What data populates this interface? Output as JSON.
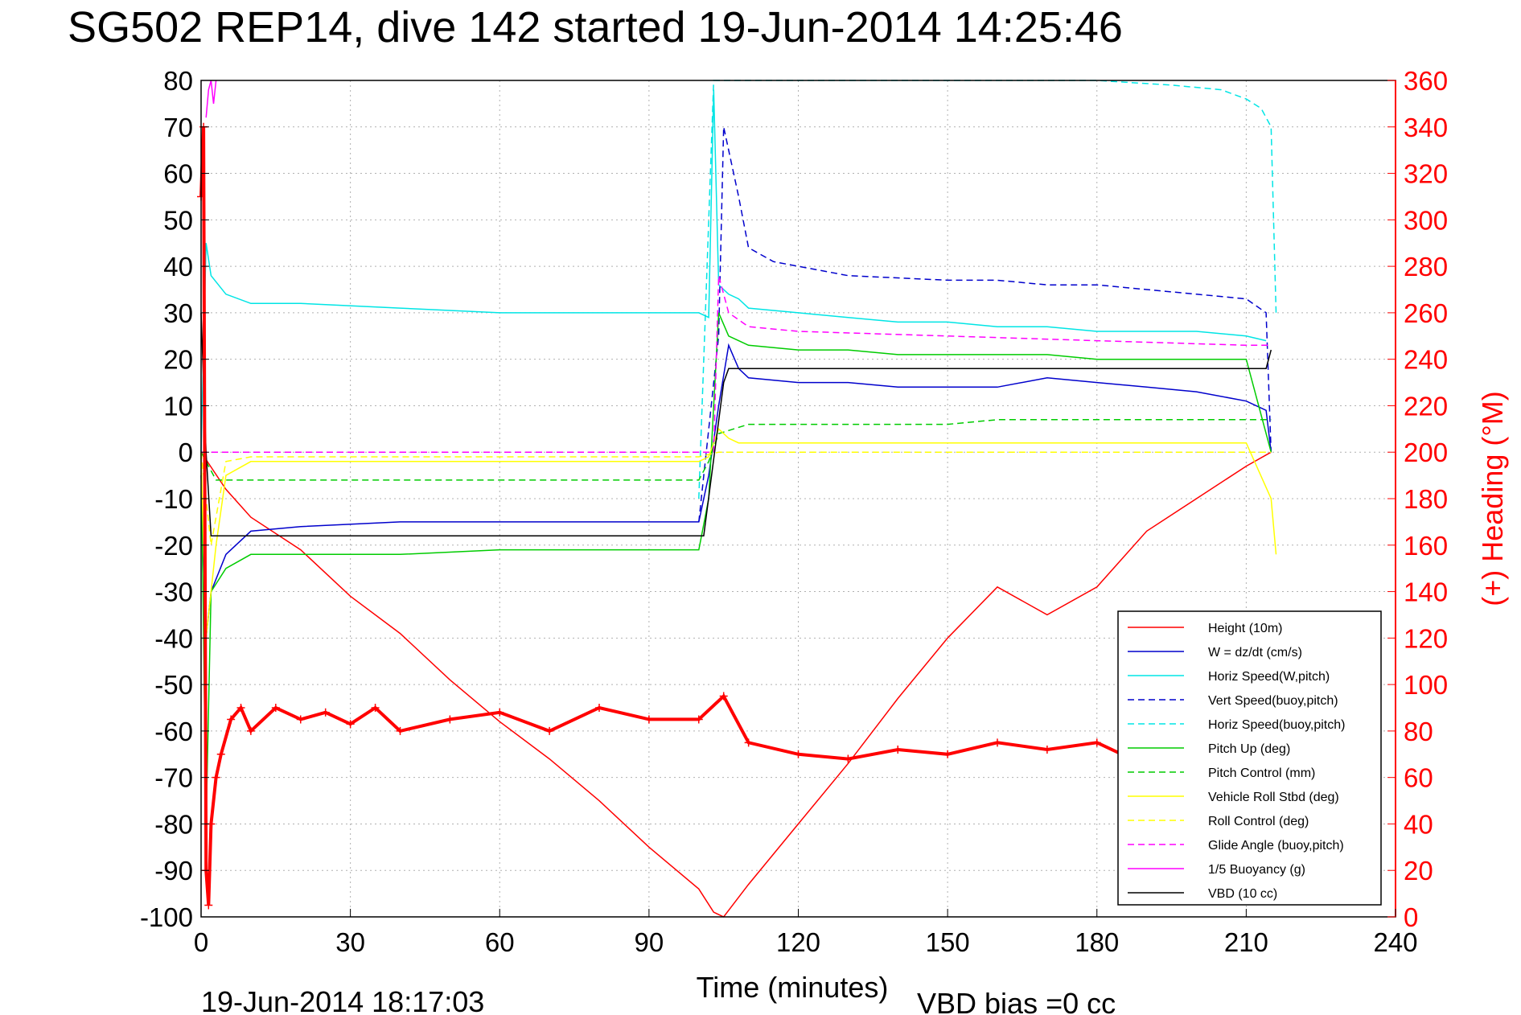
{
  "colors": {
    "height": "#ff0000",
    "w": "#0000cc",
    "horiz_speed": "#00e5e5",
    "vert_speed_buoy": "#0000cc",
    "horiz_speed_buoy": "#00e5e5",
    "pitch_up": "#00cc00",
    "pitch_control": "#00cc00",
    "roll_stbd": "#ffff00",
    "roll_control": "#ffff00",
    "glide_angle": "#ff00ff",
    "buoyancy": "#ff00ff",
    "vbd": "#000000",
    "heading": "#ff0000",
    "grid": "#b0b0b0"
  },
  "chart_data": {
    "type": "line",
    "title": "SG502 REP14, dive 142 started 19-Jun-2014 14:25:46",
    "xlabel": "Time (minutes)",
    "ylabel_right": "(+) Heading (°M)",
    "xlim": [
      0,
      240
    ],
    "ylim": [
      -100,
      80
    ],
    "ylim_right": [
      0,
      360
    ],
    "xticks": [
      "0",
      "30",
      "60",
      "90",
      "120",
      "150",
      "180",
      "210",
      "240"
    ],
    "yticks": [
      "80",
      "70",
      "60",
      "50",
      "40",
      "30",
      "20",
      "10",
      "0",
      "-10",
      "-20",
      "-30",
      "-40",
      "-50",
      "-60",
      "-70",
      "-80",
      "-90",
      "-100"
    ],
    "yticks_right": [
      "360",
      "340",
      "320",
      "300",
      "280",
      "260",
      "240",
      "220",
      "200",
      "180",
      "160",
      "140",
      "120",
      "100",
      "80",
      "60",
      "40",
      "20",
      "0"
    ],
    "grid": true,
    "legend_position": "bottom-right",
    "footer_left": "19-Jun-2014 18:17:03",
    "footer_right": "VBD bias =0 cc",
    "series": [
      {
        "name": "Height (10m)",
        "style": "solid",
        "color": "#ff0000",
        "x": [
          0,
          5,
          10,
          20,
          30,
          40,
          50,
          60,
          70,
          80,
          90,
          100,
          103,
          105,
          110,
          120,
          130,
          140,
          150,
          160,
          170,
          180,
          190,
          200,
          210,
          215
        ],
        "y": [
          0,
          -8,
          -14,
          -21,
          -31,
          -39,
          -49,
          -58,
          -66,
          -75,
          -85,
          -94,
          -99,
          -100,
          -93,
          -80,
          -67,
          -53,
          -40,
          -29,
          -35,
          -29,
          -17,
          -10,
          -3,
          0
        ]
      },
      {
        "name": "W  = dz/dt (cm/s)",
        "style": "solid",
        "color": "#0000cc",
        "x": [
          0,
          1,
          2,
          5,
          10,
          20,
          40,
          60,
          80,
          100,
          102,
          104,
          106,
          108,
          110,
          120,
          130,
          140,
          150,
          160,
          170,
          180,
          190,
          200,
          210,
          214,
          215
        ],
        "y": [
          -5,
          -40,
          -30,
          -22,
          -17,
          -16,
          -15,
          -15,
          -15,
          -15,
          -5,
          10,
          23,
          18,
          16,
          15,
          15,
          14,
          14,
          14,
          16,
          15,
          14,
          13,
          11,
          9,
          0
        ]
      },
      {
        "name": "Horiz Speed(W,pitch)",
        "style": "solid",
        "color": "#00e5e5",
        "x": [
          0,
          1,
          2,
          5,
          10,
          20,
          40,
          60,
          80,
          100,
          102,
          103,
          104,
          106,
          108,
          110,
          120,
          130,
          140,
          150,
          160,
          170,
          180,
          190,
          200,
          210,
          214
        ],
        "y": [
          0,
          45,
          38,
          34,
          32,
          32,
          31,
          30,
          30,
          30,
          29,
          78,
          36,
          34,
          33,
          31,
          30,
          29,
          28,
          28,
          27,
          27,
          26,
          26,
          26,
          25,
          24
        ]
      },
      {
        "name": "Vert Speed(buoy,pitch)",
        "style": "dashed",
        "color": "#0000cc",
        "x": [
          100,
          104,
          105,
          106,
          108,
          110,
          115,
          130,
          150,
          160,
          170,
          180,
          190,
          200,
          210,
          214,
          215
        ],
        "y": [
          -15,
          25,
          70,
          65,
          55,
          44,
          41,
          38,
          37,
          37,
          36,
          36,
          35,
          34,
          33,
          30,
          0
        ]
      },
      {
        "name": "Horiz Speed(buoy,pitch)",
        "style": "dashed",
        "color": "#00e5e5",
        "x": [
          100,
          103,
          104,
          106,
          180,
          195,
          205,
          210,
          213,
          215,
          216
        ],
        "y": [
          -10,
          80,
          80,
          80,
          80,
          79,
          78,
          76,
          74,
          70,
          30
        ]
      },
      {
        "name": "Pitch Up (deg)",
        "style": "solid",
        "color": "#00cc00",
        "x": [
          0,
          1,
          2,
          5,
          10,
          20,
          40,
          60,
          80,
          100,
          102,
          104,
          106,
          108,
          110,
          120,
          130,
          140,
          150,
          160,
          170,
          180,
          190,
          200,
          210,
          215
        ],
        "y": [
          0,
          -80,
          -30,
          -25,
          -22,
          -22,
          -22,
          -21,
          -21,
          -21,
          -10,
          30,
          25,
          24,
          23,
          22,
          22,
          21,
          21,
          21,
          21,
          20,
          20,
          20,
          20,
          0
        ]
      },
      {
        "name": "Pitch Control (mm)",
        "style": "dashed",
        "color": "#00cc00",
        "x": [
          0,
          3,
          4,
          100,
          102,
          104,
          110,
          150,
          160,
          215
        ],
        "y": [
          0,
          -6,
          -6,
          -6,
          -2,
          4,
          6,
          6,
          7,
          7
        ]
      },
      {
        "name": "Vehicle Roll Stbd (deg)",
        "style": "solid",
        "color": "#ffff00",
        "x": [
          0,
          1,
          3,
          5,
          10,
          20,
          40,
          60,
          80,
          100,
          102,
          104,
          106,
          108,
          110,
          120,
          130,
          140,
          150,
          160,
          170,
          180,
          190,
          200,
          210,
          215,
          216
        ],
        "y": [
          0,
          -40,
          -20,
          -5,
          -2,
          -2,
          -2,
          -2,
          -2,
          -2,
          -1,
          5,
          3,
          2,
          2,
          2,
          2,
          2,
          2,
          2,
          2,
          2,
          2,
          2,
          2,
          -10,
          -22
        ]
      },
      {
        "name": "Roll Control (deg)",
        "style": "dashed",
        "color": "#ffff00",
        "x": [
          0,
          2,
          5,
          10,
          20,
          40,
          60,
          80,
          100,
          104,
          110,
          150,
          180,
          215
        ],
        "y": [
          0,
          -20,
          -2,
          -1,
          -1,
          -1,
          -1,
          -1,
          -1,
          0,
          0,
          0,
          0,
          0
        ]
      },
      {
        "name": "Glide Angle (buoy,pitch)",
        "style": "dashed",
        "color": "#ff00ff",
        "x": [
          0,
          100,
          103,
          104,
          106,
          110,
          120,
          150,
          180,
          210,
          215
        ],
        "y": [
          0,
          0,
          0,
          38,
          30,
          27,
          26,
          25,
          24,
          23,
          23
        ]
      },
      {
        "name": "1/5 Buoyancy (g)",
        "style": "solid",
        "color": "#ff00ff",
        "x": [
          1,
          1.5,
          2,
          2.5,
          3
        ],
        "y": [
          72,
          78,
          80,
          75,
          80
        ]
      },
      {
        "name": "VBD (10 cc)",
        "style": "solid",
        "color": "#000000",
        "x": [
          0,
          1,
          2,
          100,
          101,
          105,
          106,
          140,
          180,
          214,
          215
        ],
        "y": [
          30,
          0,
          -18,
          -18,
          -18,
          15,
          18,
          18,
          18,
          18,
          22
        ]
      }
    ],
    "heading": {
      "name": "(+) Heading (°M)",
      "x": [
        0,
        0.5,
        1,
        1.5,
        2,
        3,
        4,
        6,
        8,
        10,
        15,
        20,
        25,
        30,
        35,
        40,
        50,
        60,
        70,
        80,
        90,
        100,
        105,
        110,
        120,
        130,
        140,
        150,
        160,
        170,
        180,
        185
      ],
      "y": [
        310,
        340,
        20,
        5,
        40,
        60,
        70,
        85,
        90,
        80,
        90,
        85,
        88,
        83,
        90,
        80,
        85,
        88,
        80,
        90,
        85,
        85,
        95,
        75,
        70,
        68,
        72,
        70,
        75,
        72,
        75,
        70
      ]
    }
  }
}
